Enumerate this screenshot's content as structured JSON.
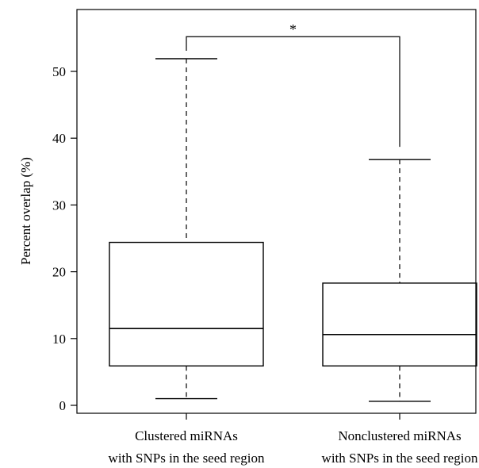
{
  "chart_data": {
    "type": "boxplot",
    "ylabel": "Percent overlap (%)",
    "ylim": [
      -1,
      60
    ],
    "yticks": [
      0,
      10,
      20,
      30,
      40,
      50
    ],
    "grid": false,
    "legend": "none",
    "categories": [
      [
        "Clustered miRNAs",
        "with SNPs in the seed region"
      ],
      [
        "Nonclustered miRNAs",
        "with SNPs in the seed region"
      ]
    ],
    "boxes": [
      {
        "min": 1.0,
        "q1": 5.9,
        "median": 11.5,
        "q3": 24.4,
        "max": 51.9
      },
      {
        "min": 0.6,
        "q1": 5.9,
        "median": 10.6,
        "q3": 18.3,
        "max": 36.8
      }
    ],
    "significance": {
      "label": "*",
      "between": [
        0,
        1
      ],
      "y": 55.2
    }
  },
  "colors": {
    "stroke": "#000000",
    "background": "#ffffff"
  }
}
